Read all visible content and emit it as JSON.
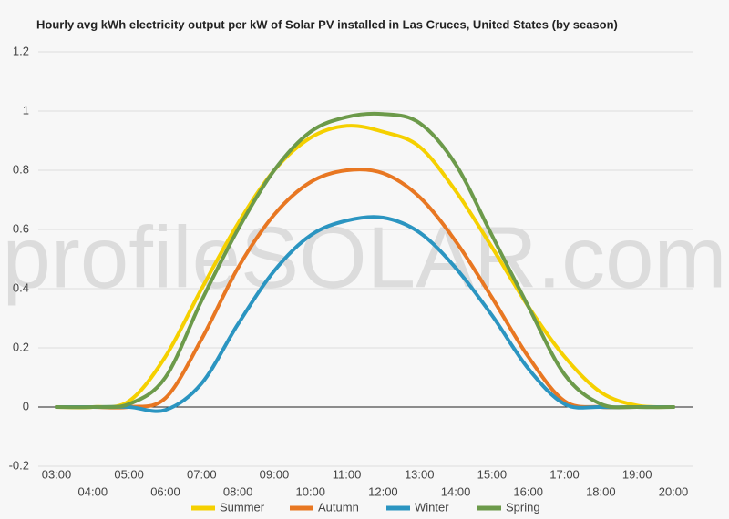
{
  "chart_data": {
    "type": "line",
    "title": "Hourly avg kWh electricity output per kW of Solar PV installed in Las Cruces, United States (by season)",
    "watermark": "profileSOLAR.com",
    "categories": [
      "03:00",
      "04:00",
      "05:00",
      "06:00",
      "07:00",
      "08:00",
      "09:00",
      "10:00",
      "11:00",
      "12:00",
      "13:00",
      "14:00",
      "15:00",
      "16:00",
      "17:00",
      "18:00",
      "19:00",
      "20:00"
    ],
    "series": [
      {
        "name": "Summer",
        "color": "#f5d000",
        "values": [
          0,
          0,
          0.02,
          0.17,
          0.4,
          0.62,
          0.8,
          0.91,
          0.95,
          0.93,
          0.88,
          0.73,
          0.54,
          0.34,
          0.17,
          0.05,
          0.005,
          0
        ]
      },
      {
        "name": "Autumn",
        "color": "#e87722",
        "values": [
          0,
          0,
          0,
          0.03,
          0.23,
          0.47,
          0.65,
          0.76,
          0.8,
          0.79,
          0.71,
          0.56,
          0.37,
          0.17,
          0.02,
          0,
          0,
          0
        ]
      },
      {
        "name": "Winter",
        "color": "#2b95c1",
        "values": [
          0,
          0,
          0,
          -0.01,
          0.08,
          0.28,
          0.46,
          0.58,
          0.63,
          0.64,
          0.59,
          0.47,
          0.31,
          0.13,
          0.01,
          0,
          0,
          0
        ]
      },
      {
        "name": "Spring",
        "color": "#6c9a4a",
        "values": [
          0,
          0,
          0.01,
          0.1,
          0.36,
          0.6,
          0.8,
          0.93,
          0.98,
          0.99,
          0.96,
          0.82,
          0.58,
          0.34,
          0.11,
          0.01,
          0,
          0
        ]
      }
    ],
    "ylim": [
      -0.2,
      1.2
    ],
    "yticks": [
      -0.2,
      0,
      0.2,
      0.4,
      0.6,
      0.8,
      1.0,
      1.2
    ],
    "grid": true
  }
}
